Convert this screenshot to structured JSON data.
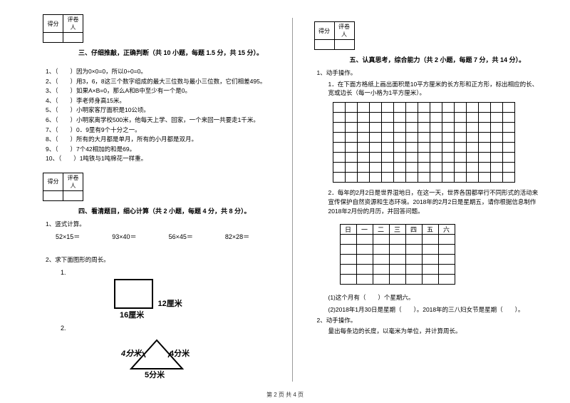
{
  "score_header": {
    "c1": "得分",
    "c2": "评卷人"
  },
  "section3": {
    "title": "三、仔细推敲，正确判断（共 10 小题，每题 1.5 分，共 15 分）。",
    "items": [
      "1、（　　）因为0×0=0，所以0÷0=0。",
      "2、（　　）用3，6，8这三个数字组成的最大三位数与最小三位数，它们相差495。",
      "3、（　　）如果A×B=0，那么A和B中至少有一个是0。",
      "4、（　　）李老师身高15米。",
      "5、（　　）小明家客厅面积是10公顷。",
      "6、（　　）小明家离学校500米，他每天上学、回家，一个来回一共要走1千米。",
      "7、（　　）0．9里有9个十分之一。",
      "8、（　　）所有的大月都是单月，所有的小月都是双月。",
      "9、（　　）7个42相加的和是69。",
      "10、（　　）1吨铁与1吨棉花一样重。"
    ]
  },
  "section4": {
    "title": "四、看清题目，细心计算（共 2 小题，每题 4 分，共 8 分）。",
    "q1_label": "1、竖式计算。",
    "arith": [
      "52×15＝",
      "93×40＝",
      "56×45＝",
      "82×28＝"
    ],
    "q2_label": "2、求下面图形的周长。",
    "sub1": "1.",
    "rect_w": "16厘米",
    "rect_h": "12厘米",
    "sub2": "2.",
    "tri_left": "4分米",
    "tri_right": "4分米",
    "tri_bottom": "5分米"
  },
  "section5": {
    "title": "五、认真思考，综合能力（共 2 小题，每题 7 分，共 14 分）。",
    "q1_label": "1、动手操作。",
    "q1_1": "1．在下面方格纸上画出面积是10平方厘米的长方形和正方形，标出相应的长、宽或边长（每一小格为1平方厘米）。",
    "grid": {
      "rows": 8,
      "cols": 15
    },
    "q1_2": "2．每年的2月2日是世界湿地日，在这一天，世界各国都举行不同形式的活动来宣传保护自然资源和生态环境。2018年的2月2日是星期五，请你根据信息制作2018年2月份的月历，并回答问题。",
    "cal_header": [
      "日",
      "一",
      "二",
      "三",
      "四",
      "五",
      "六"
    ],
    "cal_rows": 5,
    "q1_2_a": "(1)这个月有（　　）个星期六。",
    "q1_2_b": "(2)2018年1月30日是星期（　　）。2018年的三八妇女节是星期（　　）。",
    "q2_label": "2、动手操作。",
    "q2_text": "量出每条边的长度，以毫米为单位，并计算周长。"
  },
  "footer": "第 2 页 共 4 页"
}
